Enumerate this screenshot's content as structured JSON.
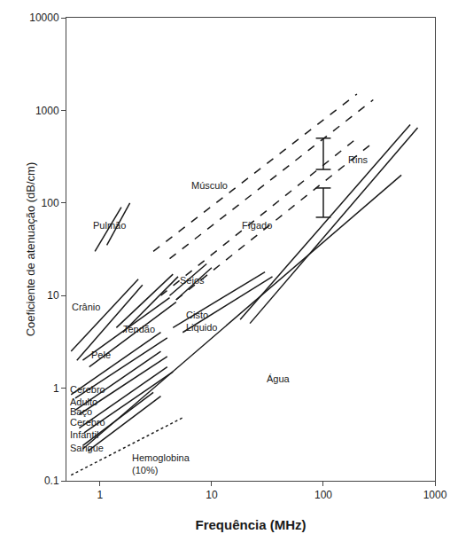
{
  "chart_data": {
    "type": "line",
    "xlabel": "Frequência (MHz)",
    "ylabel": "Coeficiente de atenuação (dB/cm)",
    "log": true,
    "xlim": [
      0.5,
      1000
    ],
    "ylim": [
      0.1,
      10000
    ],
    "xticks": [
      1,
      10,
      100,
      1000
    ],
    "yticks": [
      0.1,
      1,
      10,
      100,
      1000,
      10000
    ],
    "grid": false,
    "color": "#1a1a1a",
    "series": [
      {
        "line_style": "solid",
        "segments": [
          {
            "x": [
              0.9,
              1.55
            ],
            "y": [
              30,
              90
            ]
          },
          {
            "x": [
              1.15,
              1.85
            ],
            "y": [
              35,
              100
            ]
          }
        ]
      },
      {
        "line_style": "solid",
        "segments": [
          {
            "x": [
              0.55,
              2.2
            ],
            "y": [
              2.5,
              15
            ]
          },
          {
            "x": [
              0.62,
              2.4
            ],
            "y": [
              2.0,
              13
            ]
          }
        ]
      },
      {
        "line_style": "solid",
        "segments": [
          {
            "x": [
              1.4,
              4.5
            ],
            "y": [
              4.5,
              17
            ]
          },
          {
            "x": [
              1.6,
              5.0
            ],
            "y": [
              4.0,
              16
            ]
          }
        ]
      },
      {
        "line_style": "solid",
        "segments": [
          {
            "x": [
              0.7,
              4.2
            ],
            "y": [
              2.0,
              9.5
            ]
          },
          {
            "x": [
              0.8,
              4.8
            ],
            "y": [
              1.7,
              8.5
            ]
          }
        ]
      },
      {
        "line_style": "solid",
        "segments": [
          {
            "x": [
              4.2,
              9.0
            ],
            "y": [
              10,
              22
            ]
          },
          {
            "x": [
              4.8,
              10.0
            ],
            "y": [
              9,
              20
            ]
          }
        ]
      },
      {
        "line_style": "solid",
        "segments": [
          {
            "x": [
              4.5,
              30.0
            ],
            "y": [
              4.5,
              18
            ]
          },
          {
            "x": [
              5.5,
              35.0
            ],
            "y": [
              4.0,
              16
            ]
          }
        ]
      },
      {
        "line_style": "solid",
        "segments": [
          {
            "x": [
              0.7,
              500
            ],
            "y": [
              0.22,
              200
            ]
          }
        ]
      },
      {
        "line_style": "dashed",
        "segments": [
          {
            "x": [
              3.0,
              200
            ],
            "y": [
              30,
              1500
            ]
          },
          {
            "x": [
              4.2,
              280
            ],
            "y": [
              25,
              1300
            ]
          }
        ]
      },
      {
        "line_style": "dashed",
        "segments": [
          {
            "x": [
              3.5,
              200
            ],
            "y": [
              10,
              500
            ]
          },
          {
            "x": [
              4.8,
              280
            ],
            "y": [
              9,
              450
            ]
          }
        ]
      },
      {
        "line_style": "solid",
        "segments": [
          {
            "x": [
              18,
              600
            ],
            "y": [
              5.5,
              700
            ]
          },
          {
            "x": [
              22,
              700
            ],
            "y": [
              5.0,
              650
            ]
          }
        ]
      },
      {
        "line_style": "solid",
        "segments": [
          {
            "x": [
              0.55,
              3.5
            ],
            "y": [
              0.85,
              4.0
            ]
          },
          {
            "x": [
              0.6,
              4.0
            ],
            "y": [
              0.78,
              3.5
            ]
          }
        ]
      },
      {
        "line_style": "solid",
        "segments": [
          {
            "x": [
              0.6,
              3.5
            ],
            "y": [
              0.58,
              2.5
            ]
          },
          {
            "x": [
              0.65,
              4.0
            ],
            "y": [
              0.52,
              2.2
            ]
          }
        ]
      },
      {
        "line_style": "solid",
        "segments": [
          {
            "x": [
              0.65,
              4.0
            ],
            "y": [
              0.37,
              1.7
            ]
          },
          {
            "x": [
              0.72,
              4.5
            ],
            "y": [
              0.33,
              1.5
            ]
          }
        ]
      },
      {
        "line_style": "solid",
        "segments": [
          {
            "x": [
              0.7,
              3.0
            ],
            "y": [
              0.24,
              0.9
            ]
          },
          {
            "x": [
              0.78,
              3.5
            ],
            "y": [
              0.21,
              0.82
            ]
          }
        ]
      },
      {
        "line_style": "dotted",
        "segments": [
          {
            "x": [
              0.55,
              5.5
            ],
            "y": [
              0.115,
              0.48
            ]
          }
        ]
      }
    ],
    "annotations": [
      {
        "text": "Pulmão",
        "x": 0.84,
        "y": 58
      },
      {
        "text": "Crânio",
        "x": 0.54,
        "y": 7.5
      },
      {
        "text": "Tendão",
        "x": 1.55,
        "y": 4.3
      },
      {
        "text": "Pele",
        "x": 0.8,
        "y": 2.3
      },
      {
        "text": "Seios",
        "x": 5.0,
        "y": 14.5
      },
      {
        "text": "Cisto\nLiquido",
        "x": 5.7,
        "y": 5.3
      },
      {
        "text": "Água",
        "x": 30,
        "y": 1.25
      },
      {
        "text": "Músculo",
        "x": 6.3,
        "y": 155
      },
      {
        "text": "Fígado",
        "x": 18,
        "y": 57
      },
      {
        "text": "Rins",
        "x": 160,
        "y": 295
      },
      {
        "text": "Cerebro\nAdulto",
        "x": 0.52,
        "y": 0.83
      },
      {
        "text": "Baço",
        "x": 0.52,
        "y": 0.56
      },
      {
        "text": "Cerebro\nInfantil",
        "x": 0.52,
        "y": 0.365
      },
      {
        "text": "Sangue",
        "x": 0.52,
        "y": 0.228
      },
      {
        "text": "Hemoglobina\n(10%)",
        "x": 1.85,
        "y": 0.152
      }
    ],
    "error_bars": [
      {
        "x": 100,
        "y_lo": 230,
        "y_hi": 500
      },
      {
        "x": 100,
        "y_lo": 70,
        "y_hi": 145
      }
    ]
  }
}
